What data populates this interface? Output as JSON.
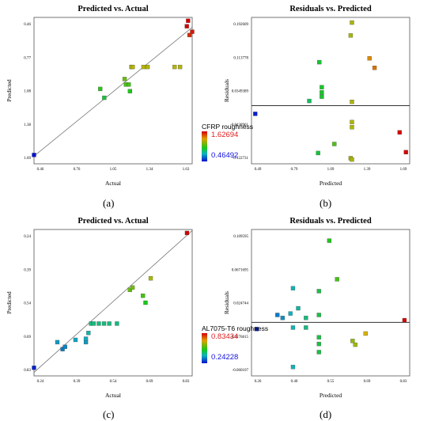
{
  "captions": [
    "(a)",
    "(b)",
    "(c)",
    "(d)"
  ],
  "legends": [
    {
      "title": "CFRP roughness",
      "max": "1.62694",
      "min": "0.46492"
    },
    {
      "title": "AL7075-T6 roughness",
      "max": "0.83434",
      "min": "0.24228"
    }
  ],
  "chart_data": [
    {
      "type": "scatter",
      "title": "Predicted vs. Actual",
      "xlabel": "Actual",
      "ylabel": "Predicted",
      "xlim": [
        0.46,
        1.63
      ],
      "ylim": [
        0.39,
        1.72
      ],
      "x_ticks": [
        "0.46",
        "0.76",
        "1.05",
        "1.34",
        "1.63"
      ],
      "y_ticks": [
        "0.46",
        "0.77",
        "1.08",
        "1.38",
        "1.69"
      ],
      "reference_line": "y = x",
      "color_range": [
        0.46492,
        1.62694
      ],
      "points": [
        {
          "x": 0.46,
          "y": 0.47
        },
        {
          "x": 0.95,
          "y": 1.07
        },
        {
          "x": 0.98,
          "y": 0.99
        },
        {
          "x": 1.13,
          "y": 1.16
        },
        {
          "x": 1.14,
          "y": 1.11
        },
        {
          "x": 1.16,
          "y": 1.11
        },
        {
          "x": 1.17,
          "y": 1.05
        },
        {
          "x": 1.18,
          "y": 1.27
        },
        {
          "x": 1.19,
          "y": 1.27
        },
        {
          "x": 1.27,
          "y": 1.27
        },
        {
          "x": 1.3,
          "y": 1.27
        },
        {
          "x": 1.5,
          "y": 1.27
        },
        {
          "x": 1.54,
          "y": 1.27
        },
        {
          "x": 1.59,
          "y": 1.64
        },
        {
          "x": 1.6,
          "y": 1.69
        },
        {
          "x": 1.61,
          "y": 1.56
        },
        {
          "x": 1.63,
          "y": 1.59
        }
      ]
    },
    {
      "type": "scatter",
      "title": "Residuals vs. Predicted",
      "xlabel": "Predicted",
      "ylabel": "Residuals",
      "xlim": [
        0.46,
        1.72
      ],
      "ylim": [
        -0.135,
        0.205
      ],
      "x_ticks": [
        "0.49",
        "0.79",
        "1.09",
        "1.39",
        "1.69"
      ],
      "y_ticks": [
        "0.192609",
        "0.113778",
        "0.0349389",
        "-0.0438961",
        "-0.122731"
      ],
      "zero_line": 0,
      "color_range": [
        0.46492,
        1.62694
      ],
      "points": [
        {
          "x": 0.49,
          "y": -0.019
        },
        {
          "x": 0.99,
          "y": -0.11
        },
        {
          "x": 1.0,
          "y": 0.101
        },
        {
          "x": 1.02,
          "y": 0.043
        },
        {
          "x": 1.02,
          "y": 0.031
        },
        {
          "x": 1.02,
          "y": 0.021
        },
        {
          "x": 0.92,
          "y": 0.011
        },
        {
          "x": 1.12,
          "y": -0.089
        },
        {
          "x": 1.25,
          "y": 0.163
        },
        {
          "x": 1.26,
          "y": 0.009
        },
        {
          "x": 1.26,
          "y": -0.038
        },
        {
          "x": 1.26,
          "y": -0.05
        },
        {
          "x": 1.25,
          "y": -0.122
        },
        {
          "x": 1.26,
          "y": -0.125
        },
        {
          "x": 1.26,
          "y": 0.193
        },
        {
          "x": 1.4,
          "y": 0.11
        },
        {
          "x": 1.44,
          "y": 0.088
        },
        {
          "x": 1.64,
          "y": -0.062
        },
        {
          "x": 1.69,
          "y": -0.108
        }
      ]
    },
    {
      "type": "scatter",
      "title": "Predicted vs. Actual",
      "xlabel": "Actual",
      "ylabel": "Predicted",
      "xlim": [
        0.24,
        0.85
      ],
      "ylim": [
        0.225,
        0.855
      ],
      "x_ticks": [
        "0.24",
        "0.39",
        "0.54",
        "0.69",
        "0.83"
      ],
      "y_ticks": [
        "0.24",
        "0.39",
        "0.54",
        "0.69",
        "0.83"
      ],
      "reference_line": "y = x",
      "color_range": [
        0.24228,
        0.83434
      ],
      "points": [
        {
          "x": 0.24,
          "y": 0.26
        },
        {
          "x": 0.33,
          "y": 0.37
        },
        {
          "x": 0.35,
          "y": 0.34
        },
        {
          "x": 0.36,
          "y": 0.35
        },
        {
          "x": 0.4,
          "y": 0.38
        },
        {
          "x": 0.44,
          "y": 0.37
        },
        {
          "x": 0.44,
          "y": 0.385
        },
        {
          "x": 0.45,
          "y": 0.41
        },
        {
          "x": 0.46,
          "y": 0.45
        },
        {
          "x": 0.47,
          "y": 0.45
        },
        {
          "x": 0.49,
          "y": 0.45
        },
        {
          "x": 0.51,
          "y": 0.45
        },
        {
          "x": 0.53,
          "y": 0.45
        },
        {
          "x": 0.56,
          "y": 0.45
        },
        {
          "x": 0.61,
          "y": 0.595
        },
        {
          "x": 0.62,
          "y": 0.605
        },
        {
          "x": 0.66,
          "y": 0.57
        },
        {
          "x": 0.67,
          "y": 0.54
        },
        {
          "x": 0.69,
          "y": 0.645
        },
        {
          "x": 0.83,
          "y": 0.84
        }
      ]
    },
    {
      "type": "scatter",
      "title": "Residuals vs. Predicted",
      "xlabel": "Predicted",
      "ylabel": "Residuals",
      "xlim": [
        0.24,
        0.85
      ],
      "ylim": [
        -0.072,
        0.125
      ],
      "x_ticks": [
        "0.26",
        "0.40",
        "0.55",
        "0.69",
        "0.83"
      ],
      "y_ticks": [
        "0.109595",
        "0.0671695",
        "0.024744",
        "-0.0176815",
        "-0.060107"
      ],
      "zero_line": 0,
      "color_range": [
        0.24228,
        0.83434
      ],
      "points": [
        {
          "x": 0.26,
          "y": -0.009
        },
        {
          "x": 0.34,
          "y": 0.01
        },
        {
          "x": 0.36,
          "y": 0.006
        },
        {
          "x": 0.39,
          "y": 0.012
        },
        {
          "x": 0.4,
          "y": 0.046
        },
        {
          "x": 0.4,
          "y": -0.007
        },
        {
          "x": 0.4,
          "y": -0.06
        },
        {
          "x": 0.42,
          "y": 0.019
        },
        {
          "x": 0.45,
          "y": 0.006
        },
        {
          "x": 0.45,
          "y": -0.007
        },
        {
          "x": 0.5,
          "y": 0.042
        },
        {
          "x": 0.5,
          "y": 0.01
        },
        {
          "x": 0.5,
          "y": -0.02
        },
        {
          "x": 0.5,
          "y": -0.029
        },
        {
          "x": 0.5,
          "y": -0.04
        },
        {
          "x": 0.54,
          "y": 0.11
        },
        {
          "x": 0.57,
          "y": 0.058
        },
        {
          "x": 0.63,
          "y": -0.025
        },
        {
          "x": 0.64,
          "y": -0.03
        },
        {
          "x": 0.68,
          "y": -0.015
        },
        {
          "x": 0.83,
          "y": 0.003
        }
      ]
    }
  ]
}
